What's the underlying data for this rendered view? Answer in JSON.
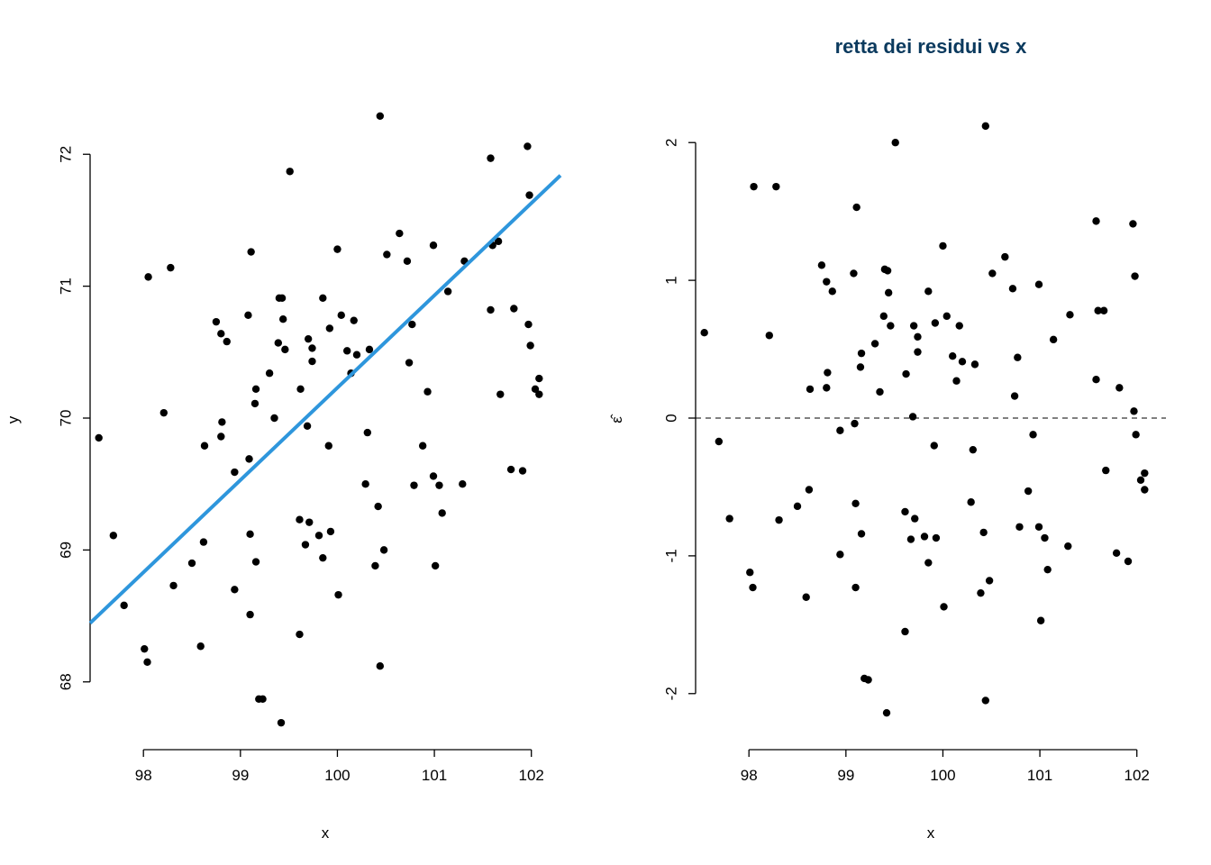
{
  "colors": {
    "regression_line": "#2e96dc",
    "title": "#0b3a5e",
    "points": "#000000"
  },
  "chart_data": [
    {
      "type": "scatter",
      "title": "",
      "xlabel": "x",
      "ylabel": "y",
      "xlim": [
        97.45,
        102.3
      ],
      "ylim": [
        67.65,
        72.35
      ],
      "xticks": [
        "98",
        "99",
        "100",
        "101",
        "102"
      ],
      "yticks": [
        "68",
        "69",
        "70",
        "71",
        "72"
      ],
      "grid": false,
      "regression_line": {
        "intercept": 0.25,
        "slope": 0.6998
      },
      "points": [
        [
          97.54,
          69.85
        ],
        [
          97.69,
          69.11
        ],
        [
          97.8,
          68.58
        ],
        [
          98.01,
          68.25
        ],
        [
          98.04,
          68.15
        ],
        [
          98.05,
          71.07
        ],
        [
          98.21,
          70.04
        ],
        [
          98.28,
          71.14
        ],
        [
          98.31,
          68.73
        ],
        [
          98.5,
          68.9
        ],
        [
          98.59,
          68.27
        ],
        [
          98.62,
          69.06
        ],
        [
          98.63,
          69.79
        ],
        [
          98.75,
          70.73
        ],
        [
          98.8,
          70.64
        ],
        [
          98.8,
          69.86
        ],
        [
          98.81,
          69.97
        ],
        [
          98.86,
          70.58
        ],
        [
          98.94,
          69.59
        ],
        [
          98.94,
          68.7
        ],
        [
          99.08,
          70.78
        ],
        [
          99.09,
          69.69
        ],
        [
          99.1,
          69.12
        ],
        [
          99.1,
          68.51
        ],
        [
          99.11,
          71.26
        ],
        [
          99.15,
          70.11
        ],
        [
          99.16,
          70.22
        ],
        [
          99.16,
          68.91
        ],
        [
          99.19,
          67.87
        ],
        [
          99.23,
          67.87
        ],
        [
          99.3,
          70.34
        ],
        [
          99.35,
          70.0
        ],
        [
          99.39,
          70.57
        ],
        [
          99.4,
          70.91
        ],
        [
          99.42,
          67.69
        ],
        [
          99.43,
          70.91
        ],
        [
          99.44,
          70.75
        ],
        [
          99.46,
          70.52
        ],
        [
          99.51,
          71.87
        ],
        [
          99.61,
          68.36
        ],
        [
          99.61,
          69.23
        ],
        [
          99.62,
          70.22
        ],
        [
          99.67,
          69.04
        ],
        [
          99.69,
          69.94
        ],
        [
          99.7,
          70.6
        ],
        [
          99.71,
          69.21
        ],
        [
          99.74,
          70.53
        ],
        [
          99.74,
          70.43
        ],
        [
          99.81,
          69.11
        ],
        [
          99.85,
          68.94
        ],
        [
          99.85,
          70.91
        ],
        [
          99.91,
          69.79
        ],
        [
          99.92,
          70.68
        ],
        [
          99.93,
          69.14
        ],
        [
          100.0,
          71.28
        ],
        [
          100.01,
          68.66
        ],
        [
          100.04,
          70.78
        ],
        [
          100.1,
          70.51
        ],
        [
          100.14,
          70.34
        ],
        [
          100.17,
          70.74
        ],
        [
          100.2,
          70.48
        ],
        [
          100.29,
          69.5
        ],
        [
          100.31,
          69.89
        ],
        [
          100.33,
          70.52
        ],
        [
          100.39,
          68.88
        ],
        [
          100.42,
          69.33
        ],
        [
          100.44,
          72.29
        ],
        [
          100.44,
          68.12
        ],
        [
          100.48,
          69.0
        ],
        [
          100.51,
          71.24
        ],
        [
          100.64,
          71.4
        ],
        [
          100.72,
          71.19
        ],
        [
          100.74,
          70.42
        ],
        [
          100.77,
          70.71
        ],
        [
          100.79,
          69.49
        ],
        [
          100.88,
          69.79
        ],
        [
          100.93,
          70.2
        ],
        [
          100.99,
          69.56
        ],
        [
          100.99,
          71.31
        ],
        [
          101.01,
          68.88
        ],
        [
          101.05,
          69.49
        ],
        [
          101.08,
          69.28
        ],
        [
          101.14,
          70.96
        ],
        [
          101.29,
          69.5
        ],
        [
          101.31,
          71.19
        ],
        [
          101.58,
          71.97
        ],
        [
          101.58,
          70.82
        ],
        [
          101.6,
          71.31
        ],
        [
          101.66,
          71.34
        ],
        [
          101.68,
          70.18
        ],
        [
          101.79,
          69.61
        ],
        [
          101.82,
          70.83
        ],
        [
          101.91,
          69.6
        ],
        [
          101.96,
          72.06
        ],
        [
          101.97,
          70.71
        ],
        [
          101.98,
          71.69
        ],
        [
          101.99,
          70.55
        ],
        [
          102.04,
          70.22
        ],
        [
          102.08,
          70.18
        ],
        [
          102.08,
          70.3
        ]
      ]
    },
    {
      "type": "scatter",
      "title": "retta dei residui vs x",
      "xlabel": "x",
      "ylabel": "ε̂",
      "xlim": [
        97.45,
        102.3
      ],
      "ylim": [
        -2.25,
        2.25
      ],
      "xticks": [
        "98",
        "99",
        "100",
        "101",
        "102"
      ],
      "yticks": [
        "-2",
        "-1",
        "0",
        "1",
        "2"
      ],
      "grid": false,
      "reference_line": {
        "y": 0,
        "style": "dashed"
      },
      "points": [
        [
          97.54,
          0.62
        ],
        [
          97.69,
          -0.17
        ],
        [
          97.8,
          -0.73
        ],
        [
          98.01,
          -1.12
        ],
        [
          98.04,
          -1.23
        ],
        [
          98.05,
          1.68
        ],
        [
          98.21,
          0.6
        ],
        [
          98.28,
          1.68
        ],
        [
          98.31,
          -0.74
        ],
        [
          98.5,
          -0.64
        ],
        [
          98.59,
          -1.3
        ],
        [
          98.62,
          -0.52
        ],
        [
          98.63,
          0.21
        ],
        [
          98.75,
          1.11
        ],
        [
          98.8,
          0.99
        ],
        [
          98.8,
          0.22
        ],
        [
          98.81,
          0.33
        ],
        [
          98.86,
          0.92
        ],
        [
          98.94,
          -0.09
        ],
        [
          98.94,
          -0.99
        ],
        [
          99.08,
          1.05
        ],
        [
          99.09,
          -0.04
        ],
        [
          99.1,
          -0.62
        ],
        [
          99.1,
          -1.23
        ],
        [
          99.11,
          1.53
        ],
        [
          99.15,
          0.37
        ],
        [
          99.16,
          0.47
        ],
        [
          99.16,
          -0.84
        ],
        [
          99.19,
          -1.89
        ],
        [
          99.23,
          -1.9
        ],
        [
          99.3,
          0.54
        ],
        [
          99.35,
          0.19
        ],
        [
          99.39,
          0.74
        ],
        [
          99.4,
          1.08
        ],
        [
          99.42,
          -2.14
        ],
        [
          99.43,
          1.07
        ],
        [
          99.44,
          0.91
        ],
        [
          99.46,
          0.67
        ],
        [
          99.51,
          2.0
        ],
        [
          99.61,
          -1.55
        ],
        [
          99.61,
          -0.68
        ],
        [
          99.62,
          0.32
        ],
        [
          99.67,
          -0.88
        ],
        [
          99.69,
          0.01
        ],
        [
          99.7,
          0.67
        ],
        [
          99.71,
          -0.73
        ],
        [
          99.74,
          0.59
        ],
        [
          99.74,
          0.48
        ],
        [
          99.81,
          -0.86
        ],
        [
          99.85,
          -1.05
        ],
        [
          99.85,
          0.92
        ],
        [
          99.91,
          -0.2
        ],
        [
          99.92,
          0.69
        ],
        [
          99.93,
          -0.87
        ],
        [
          100.0,
          1.25
        ],
        [
          100.01,
          -1.37
        ],
        [
          100.04,
          0.74
        ],
        [
          100.1,
          0.45
        ],
        [
          100.14,
          0.27
        ],
        [
          100.17,
          0.67
        ],
        [
          100.2,
          0.41
        ],
        [
          100.29,
          -0.61
        ],
        [
          100.31,
          -0.23
        ],
        [
          100.33,
          0.39
        ],
        [
          100.39,
          -1.27
        ],
        [
          100.42,
          -0.83
        ],
        [
          100.44,
          2.12
        ],
        [
          100.44,
          -2.05
        ],
        [
          100.48,
          -1.18
        ],
        [
          100.51,
          1.05
        ],
        [
          100.64,
          1.17
        ],
        [
          100.72,
          0.94
        ],
        [
          100.74,
          0.16
        ],
        [
          100.77,
          0.44
        ],
        [
          100.79,
          -0.79
        ],
        [
          100.88,
          -0.53
        ],
        [
          100.93,
          -0.12
        ],
        [
          100.99,
          -0.79
        ],
        [
          100.99,
          0.97
        ],
        [
          101.01,
          -1.47
        ],
        [
          101.05,
          -0.87
        ],
        [
          101.08,
          -1.1
        ],
        [
          101.14,
          0.57
        ],
        [
          101.29,
          -0.93
        ],
        [
          101.31,
          0.75
        ],
        [
          101.58,
          1.43
        ],
        [
          101.58,
          0.28
        ],
        [
          101.6,
          0.78
        ],
        [
          101.66,
          0.78
        ],
        [
          101.68,
          -0.38
        ],
        [
          101.79,
          -0.98
        ],
        [
          101.82,
          0.22
        ],
        [
          101.91,
          -1.04
        ],
        [
          101.96,
          1.41
        ],
        [
          101.97,
          0.05
        ],
        [
          101.98,
          1.03
        ],
        [
          101.99,
          -0.12
        ],
        [
          102.04,
          -0.45
        ],
        [
          102.08,
          -0.52
        ],
        [
          102.08,
          -0.4
        ]
      ]
    }
  ]
}
